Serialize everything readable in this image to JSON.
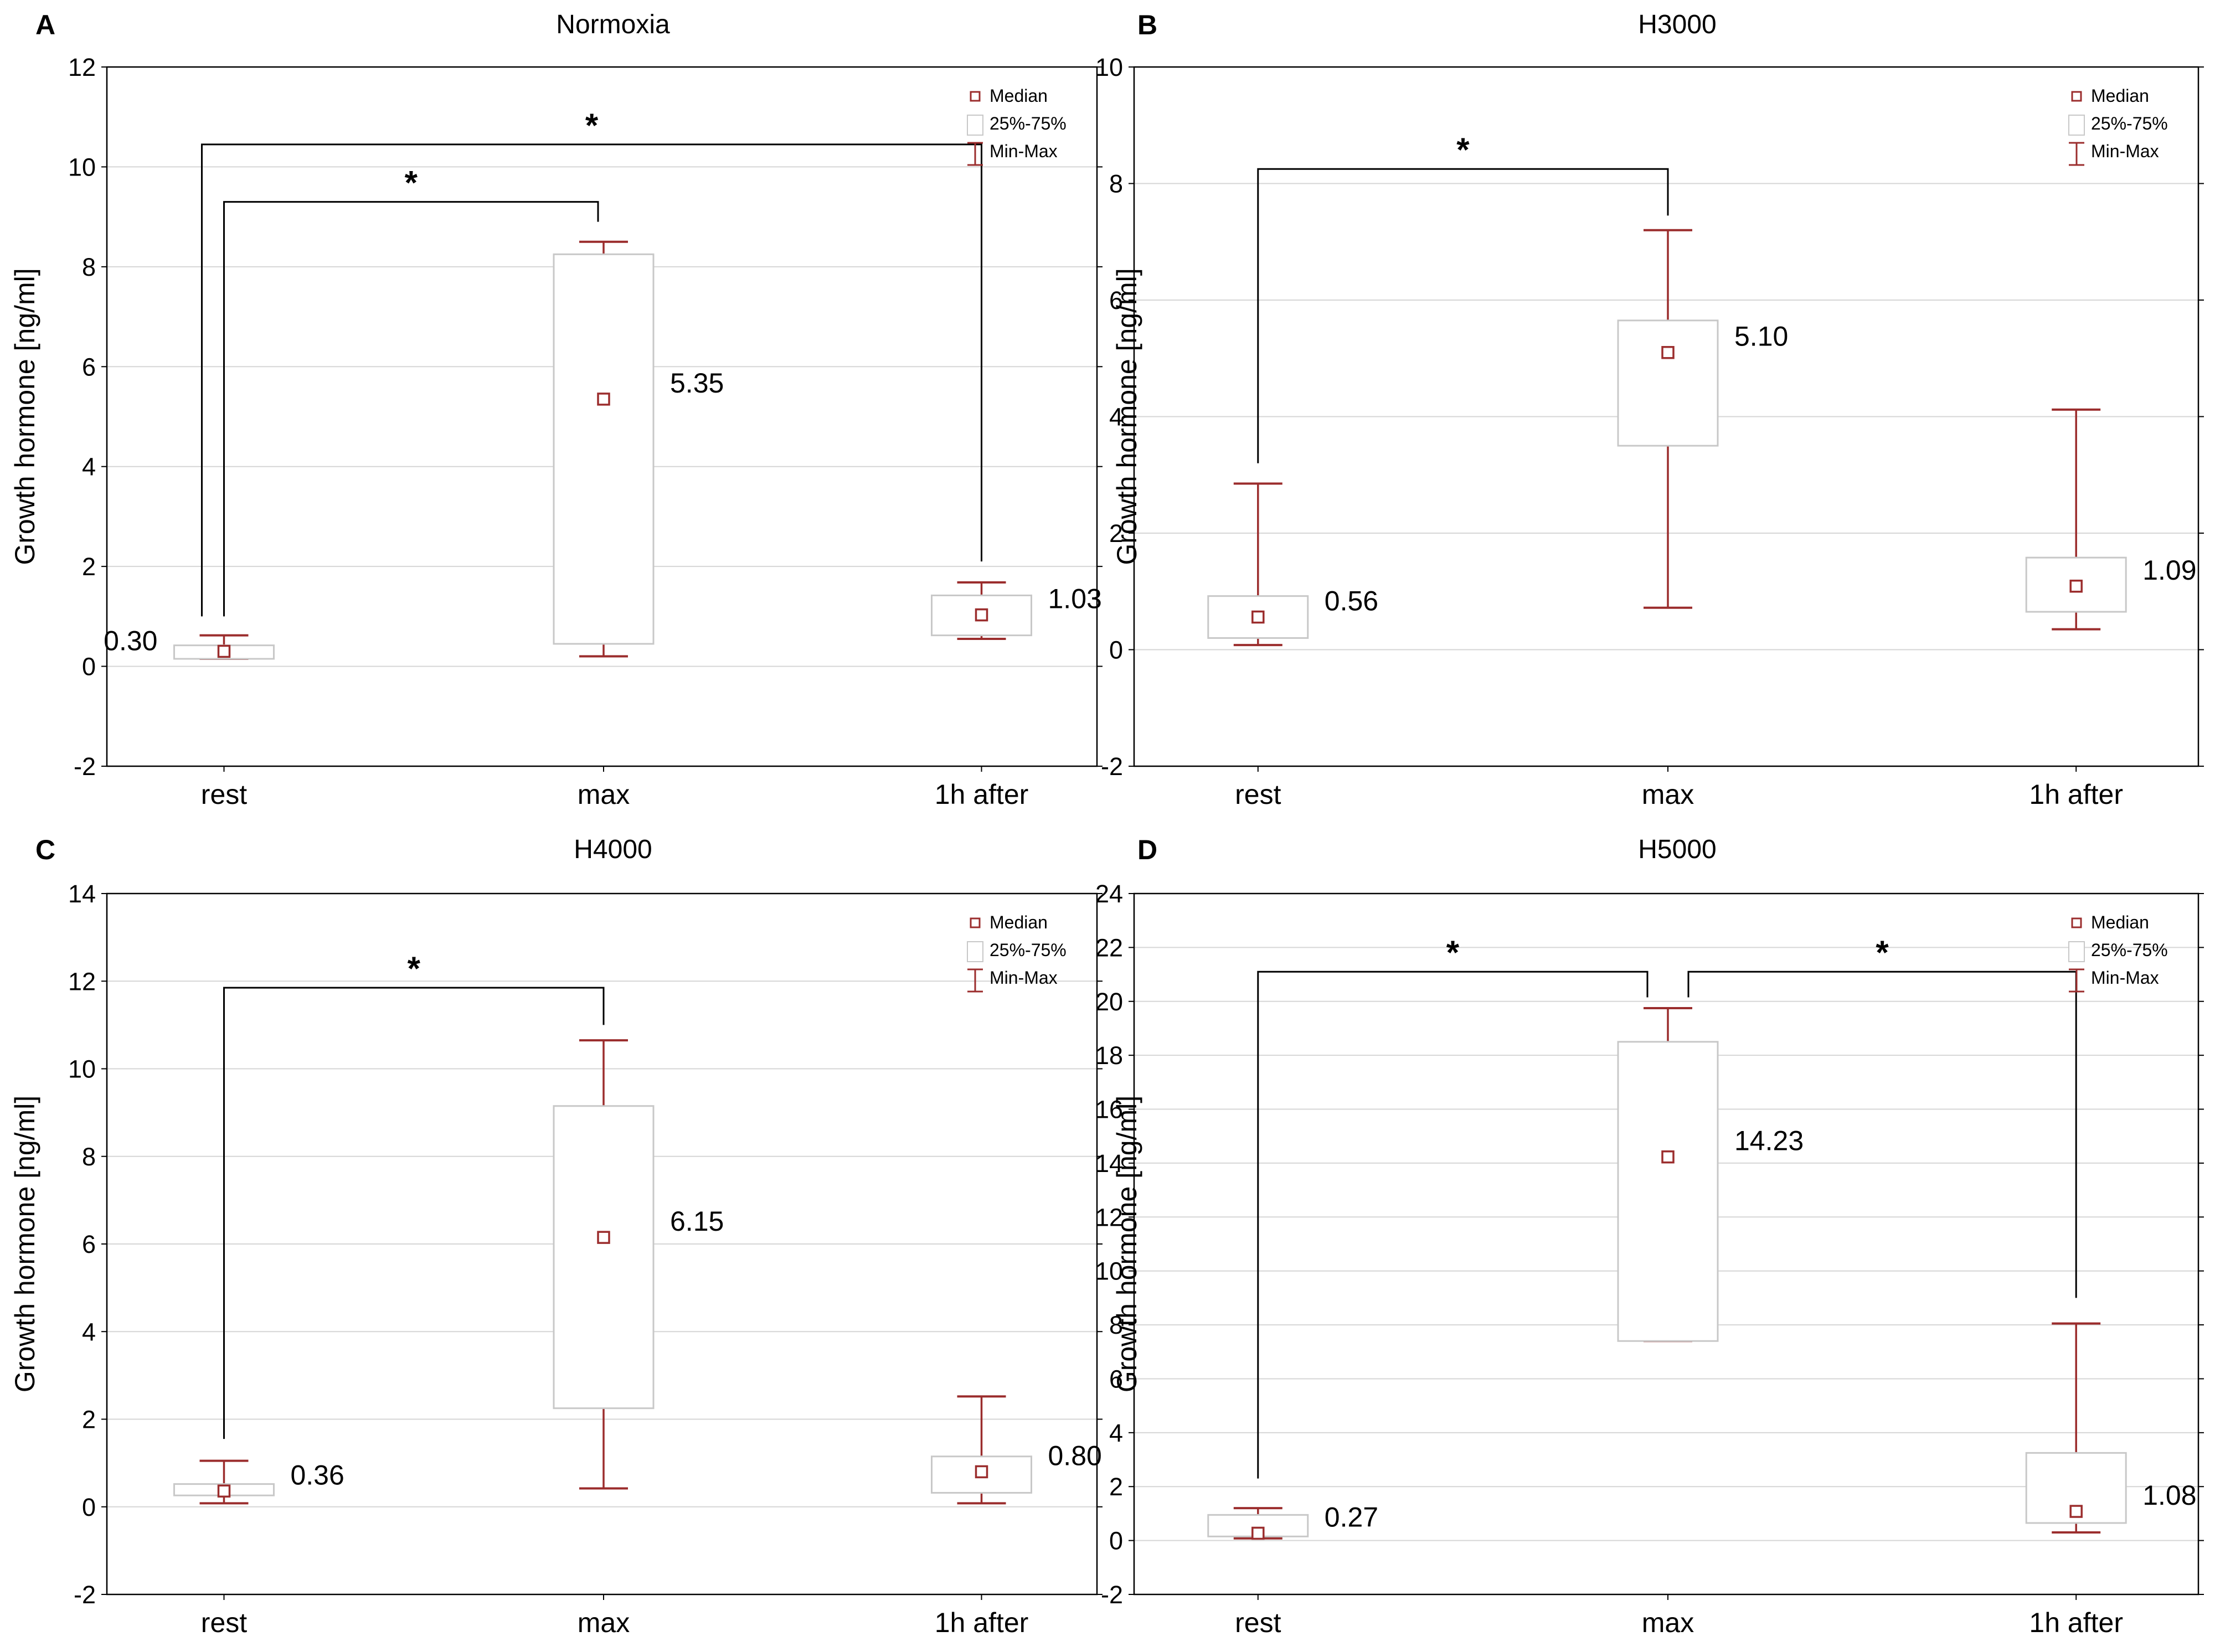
{
  "colors": {
    "box_stroke": "#c8c8c8",
    "whisker": "#9b2d2d",
    "median_marker": "#9b2d2d",
    "grid": "#d6d6d6",
    "axis": "#000000",
    "bracket": "#000000",
    "text": "#000000"
  },
  "legend": {
    "median": "Median",
    "iqr": "25%-75%",
    "minmax": "Min-Max"
  },
  "significance_symbol": "*",
  "chart_data": [
    {
      "type": "boxplot",
      "panel_letter": "A",
      "title": "Normoxia",
      "ylabel": "Growth hormone [ng/ml]",
      "xlabel": "",
      "ylim": [
        -2,
        12
      ],
      "yticks": [
        -2,
        0,
        2,
        4,
        6,
        8,
        10,
        12
      ],
      "categories": [
        "rest",
        "max",
        "1h after"
      ],
      "groups": [
        {
          "min": 0.15,
          "q1": 0.15,
          "median": 0.3,
          "q3": 0.42,
          "max": 0.62,
          "label": "0.30",
          "label_side": "left"
        },
        {
          "min": 0.2,
          "q1": 0.45,
          "median": 5.35,
          "q3": 8.25,
          "max": 8.5,
          "label": "5.35",
          "label_side": "right"
        },
        {
          "min": 0.55,
          "q1": 0.62,
          "median": 1.03,
          "q3": 1.42,
          "max": 1.68,
          "label": "1.03",
          "label_side": "right"
        }
      ],
      "significance": [
        {
          "from": 0,
          "to": 1,
          "level": 9.3,
          "drop_from": 1.0,
          "drop_to": 8.9
        },
        {
          "from": 0,
          "to": 2,
          "level": 10.45,
          "drop_from": 1.0,
          "drop_to": 2.1
        }
      ]
    },
    {
      "type": "boxplot",
      "panel_letter": "B",
      "title": "H3000",
      "ylabel": "Growth hormone [ng/ml]",
      "xlabel": "",
      "ylim": [
        -2,
        10
      ],
      "yticks": [
        -2,
        0,
        2,
        4,
        6,
        8,
        10
      ],
      "categories": [
        "rest",
        "max",
        "1h after"
      ],
      "groups": [
        {
          "min": 0.08,
          "q1": 0.2,
          "median": 0.56,
          "q3": 0.92,
          "max": 2.85,
          "label": "0.56",
          "label_side": "right"
        },
        {
          "min": 0.72,
          "q1": 3.5,
          "median": 5.1,
          "q3": 5.65,
          "max": 7.2,
          "label": "5.10",
          "label_side": "right"
        },
        {
          "min": 0.35,
          "q1": 0.65,
          "median": 1.09,
          "q3": 1.58,
          "max": 4.12,
          "label": "1.09",
          "label_side": "right"
        }
      ],
      "significance": [
        {
          "from": 0,
          "to": 1,
          "level": 8.25,
          "drop_from": 3.2,
          "drop_to": 7.45
        }
      ]
    },
    {
      "type": "boxplot",
      "panel_letter": "C",
      "title": "H4000",
      "ylabel": "Growth hormone [ng/ml]",
      "xlabel": "",
      "ylim": [
        -2,
        14
      ],
      "yticks": [
        -2,
        0,
        2,
        4,
        6,
        8,
        10,
        12,
        14
      ],
      "categories": [
        "rest",
        "max",
        "1h after"
      ],
      "groups": [
        {
          "min": 0.08,
          "q1": 0.26,
          "median": 0.36,
          "q3": 0.52,
          "max": 1.05,
          "label": "0.36",
          "label_side": "right"
        },
        {
          "min": 0.42,
          "q1": 2.25,
          "median": 6.15,
          "q3": 9.15,
          "max": 10.65,
          "label": "6.15",
          "label_side": "right"
        },
        {
          "min": 0.08,
          "q1": 0.32,
          "median": 0.8,
          "q3": 1.15,
          "max": 2.52,
          "label": "0.80",
          "label_side": "right"
        }
      ],
      "significance": [
        {
          "from": 0,
          "to": 1,
          "level": 11.85,
          "drop_from": 1.55,
          "drop_to": 11.0
        }
      ]
    },
    {
      "type": "boxplot",
      "panel_letter": "D",
      "title": "H5000",
      "ylabel": "Growth hormone [ng/ml]",
      "xlabel": "",
      "ylim": [
        -2,
        24
      ],
      "yticks": [
        -2,
        0,
        2,
        4,
        6,
        8,
        10,
        12,
        14,
        16,
        18,
        20,
        22,
        24
      ],
      "categories": [
        "rest",
        "max",
        "1h after"
      ],
      "groups": [
        {
          "min": 0.08,
          "q1": 0.15,
          "median": 0.27,
          "q3": 0.95,
          "max": 1.2,
          "label": "0.27",
          "label_side": "right"
        },
        {
          "min": 7.4,
          "q1": 7.4,
          "median": 14.23,
          "q3": 18.5,
          "max": 19.75,
          "label": "14.23",
          "label_side": "right"
        },
        {
          "min": 0.3,
          "q1": 0.65,
          "median": 1.08,
          "q3": 3.25,
          "max": 8.05,
          "label": "1.08",
          "label_side": "right"
        }
      ],
      "significance": [
        {
          "from": 0,
          "to": 1,
          "level": 21.1,
          "drop_from": 2.3,
          "drop_to": 20.15,
          "to_offset": -0.05
        },
        {
          "from": 1,
          "to": 2,
          "level": 21.1,
          "drop_from": 20.15,
          "drop_to": 9.0,
          "from_offset": 0.05
        }
      ]
    }
  ]
}
